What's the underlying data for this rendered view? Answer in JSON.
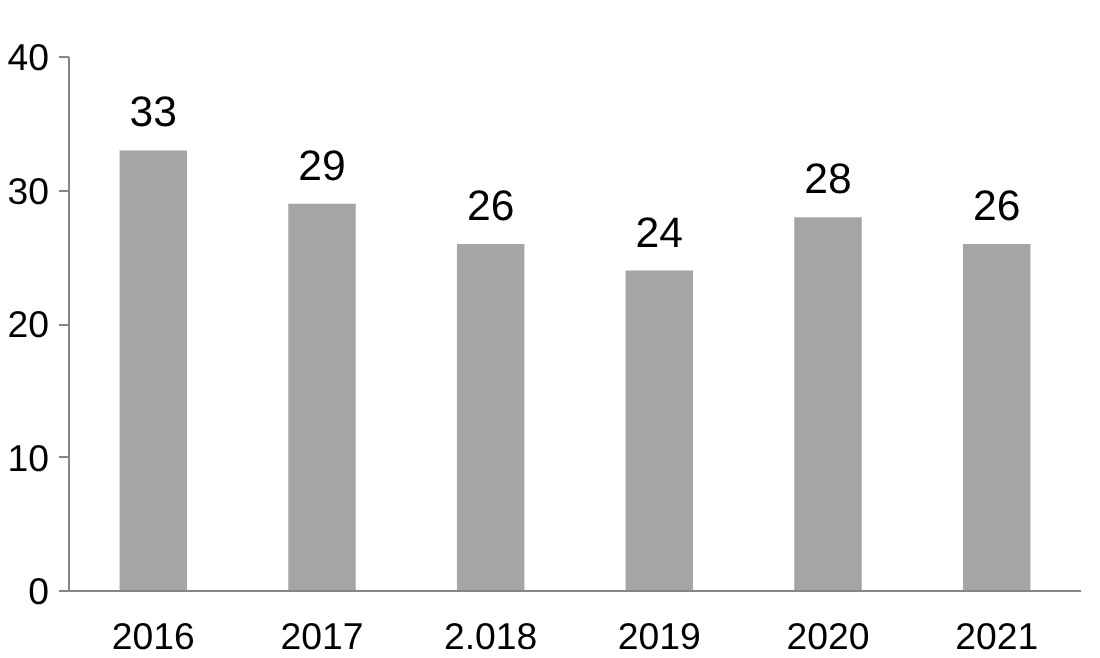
{
  "chart_data": {
    "type": "bar",
    "categories": [
      "2016",
      "2017",
      "2.018",
      "2019",
      "2020",
      "2021"
    ],
    "values": [
      33,
      29,
      26,
      24,
      28,
      26
    ],
    "color": "#a5a5a5",
    "data_labels": true,
    "ylim": [
      0,
      40
    ],
    "yticks": [
      0,
      10,
      20,
      30,
      40
    ],
    "grid": false
  }
}
